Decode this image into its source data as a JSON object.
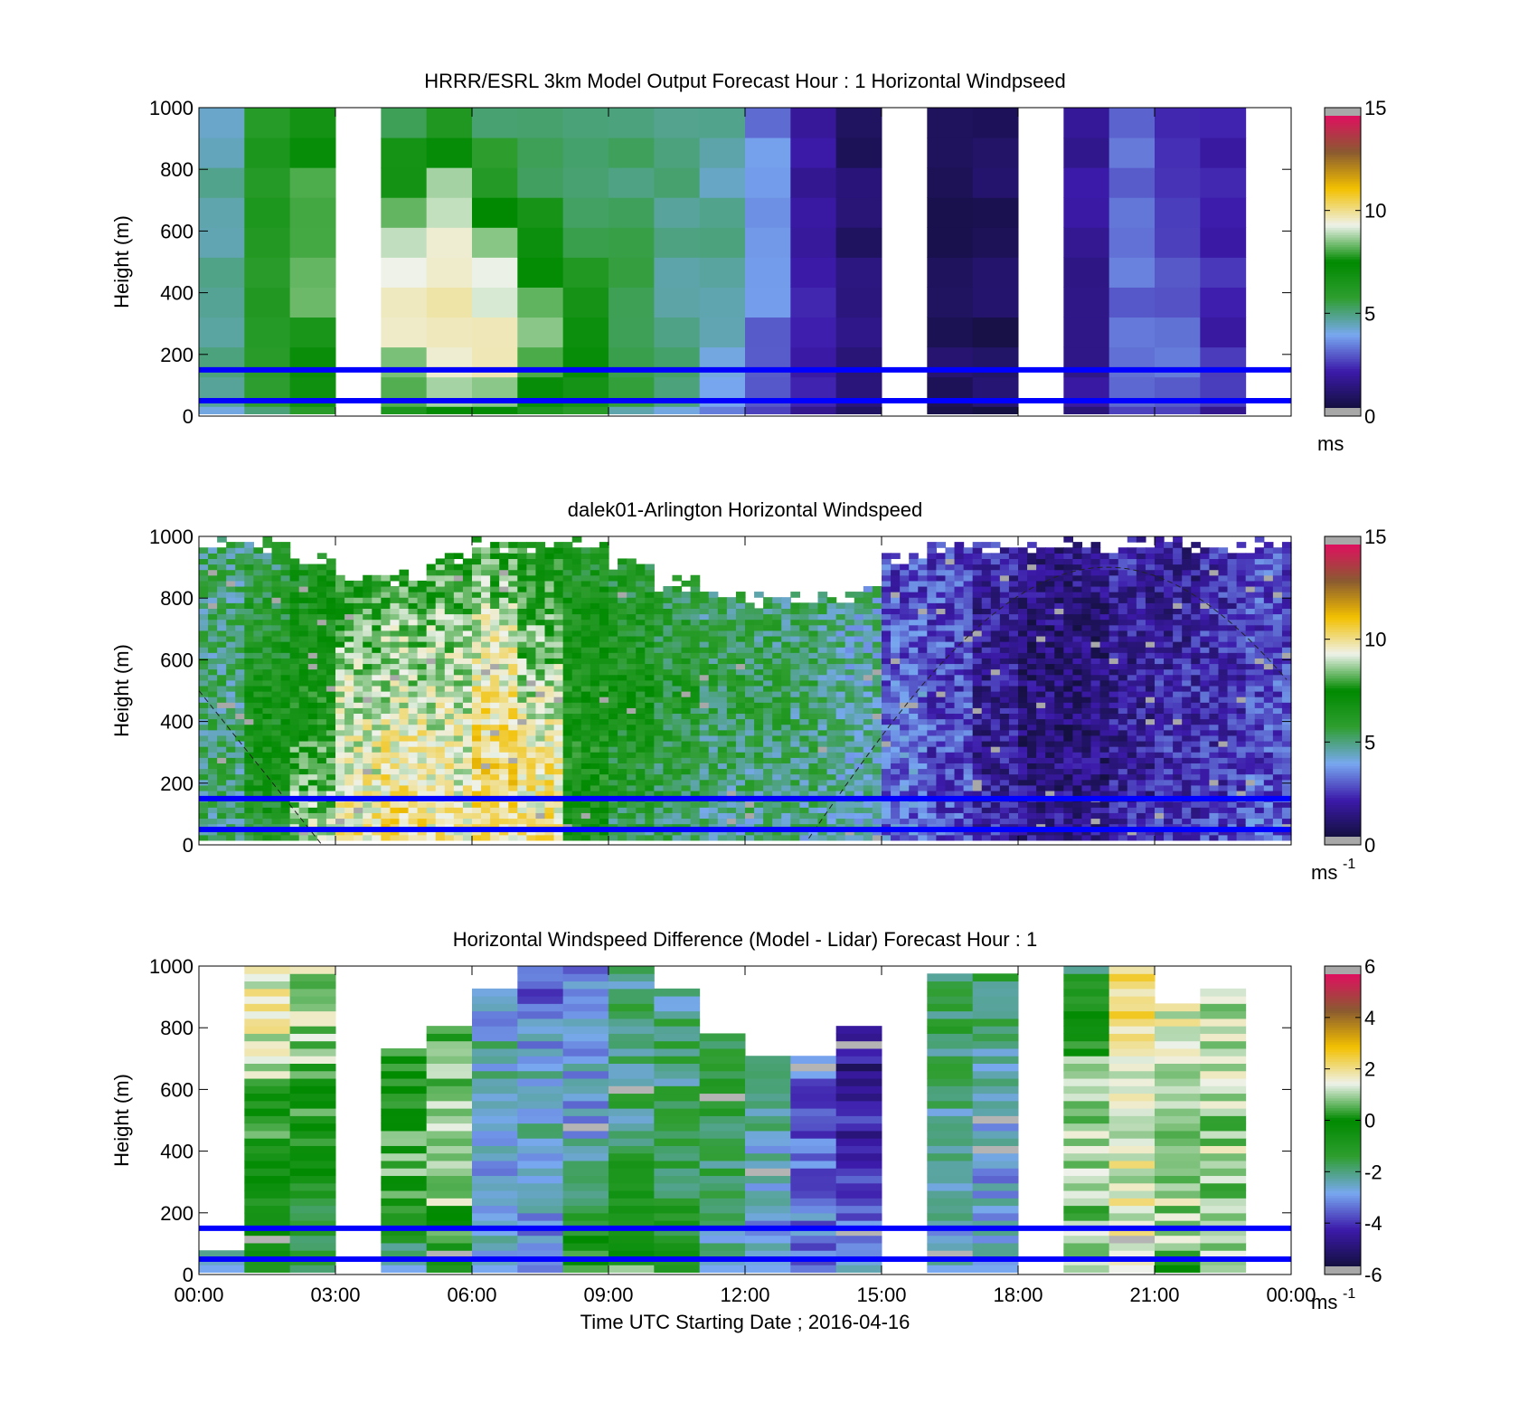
{
  "figure": {
    "xlabel": "Time UTC  Starting Date ; 2016-04-16",
    "x_ticks": [
      "00:00",
      "03:00",
      "06:00",
      "09:00",
      "12:00",
      "15:00",
      "18:00",
      "21:00",
      "00:00"
    ],
    "y_ticks": [
      "0",
      "200",
      "400",
      "600",
      "800",
      "1000"
    ],
    "ylabel": "Height (m)",
    "reference_lines_color": "#0000ff"
  },
  "chart_data": [
    {
      "type": "heatmap",
      "title": "HRRR/ESRL 3km Model Output   Forecast Hour : 1 Horizontal Windpseed",
      "ylabel": "Height (m)",
      "xlabel": "",
      "xlim": [
        0,
        24
      ],
      "ylim": [
        0,
        1000
      ],
      "x_unit": "hours UTC",
      "reference_heights_m": [
        50,
        150
      ],
      "colorbar": {
        "min": 0,
        "max": 15,
        "ticks": [
          "0",
          "5",
          "10",
          "15"
        ],
        "unit": "ms"
      },
      "colormap": [
        "#141041",
        "#3c1aaa",
        "#78a8f0",
        "#2f9e30",
        "#008a00",
        "#eef2ea",
        "#f2c000",
        "#8a5a30",
        "#e01060"
      ],
      "hourly_columns": [
        {
          "hour": 0,
          "speed_profile": [
            4.5,
            4.5,
            4.5,
            4.5,
            4.5
          ]
        },
        {
          "hour": 1,
          "speed_profile": [
            5.5,
            6,
            6,
            6,
            6
          ]
        },
        {
          "hour": 2,
          "speed_profile": [
            6.5,
            7.5,
            8.5,
            8,
            6.5
          ]
        },
        {
          "hour": 3,
          "speed_profile": null
        },
        {
          "hour": 4,
          "speed_profile": [
            7,
            9.5,
            9.5,
            8,
            5
          ]
        },
        {
          "hour": 5,
          "speed_profile": [
            8,
            10,
            10,
            9,
            5.5
          ]
        },
        {
          "hour": 6,
          "speed_profile": [
            8,
            10,
            9,
            6.5,
            4.5
          ]
        },
        {
          "hour": 7,
          "speed_profile": [
            7,
            8.5,
            7.5,
            5.5,
            4.5
          ]
        },
        {
          "hour": 8,
          "speed_profile": [
            6.5,
            7,
            6,
            5,
            4.5
          ]
        },
        {
          "hour": 9,
          "speed_profile": [
            5,
            5.5,
            5.2,
            5,
            4.8
          ]
        },
        {
          "hour": 10,
          "speed_profile": [
            4.5,
            4.8,
            4.8,
            4.8,
            4.8
          ]
        },
        {
          "hour": 11,
          "speed_profile": [
            3.8,
            4.5,
            4.5,
            4.5,
            4.5
          ]
        },
        {
          "hour": 12,
          "speed_profile": [
            3,
            3,
            4,
            3.5,
            3.2
          ]
        },
        {
          "hour": 13,
          "speed_profile": [
            2,
            2.2,
            1.8,
            1.6,
            1.6
          ]
        },
        {
          "hour": 14,
          "speed_profile": [
            1.2,
            1.2,
            0.9,
            0.7,
            0.7
          ]
        },
        {
          "hour": 15,
          "speed_profile": null
        },
        {
          "hour": 16,
          "speed_profile": [
            0.8,
            0.6,
            0.5,
            0.6,
            0.8
          ]
        },
        {
          "hour": 17,
          "speed_profile": [
            0.6,
            0.4,
            0.4,
            0.6,
            0.7
          ]
        },
        {
          "hour": 18,
          "speed_profile": null
        },
        {
          "hour": 19,
          "speed_profile": [
            1.6,
            1.6,
            1.6,
            1.6,
            1.6
          ]
        },
        {
          "hour": 20,
          "speed_profile": [
            3,
            3,
            3,
            3,
            3
          ]
        },
        {
          "hour": 21,
          "speed_profile": [
            3,
            2.8,
            2.4,
            2,
            1.6
          ]
        },
        {
          "hour": 22,
          "speed_profile": [
            2,
            2,
            2,
            1.8,
            1.6
          ]
        },
        {
          "hour": 23,
          "speed_profile": null
        }
      ]
    },
    {
      "type": "heatmap",
      "title": "dalek01-Arlington  Horizontal Windspeed",
      "ylabel": "Height (m)",
      "xlabel": "",
      "xlim": [
        0,
        24
      ],
      "ylim": [
        0,
        1000
      ],
      "x_unit": "hours UTC",
      "reference_heights_m": [
        50,
        150
      ],
      "colorbar": {
        "min": 0,
        "max": 15,
        "ticks": [
          "0",
          "5",
          "10",
          "15"
        ],
        "unit": "ms",
        "unit_exponent": "-1"
      },
      "colormap": [
        "#141041",
        "#3c1aaa",
        "#78a8f0",
        "#2f9e30",
        "#008a00",
        "#eef2ea",
        "#f2c000",
        "#8a5a30",
        "#e01060"
      ],
      "top_of_valid_data_m_by_hour": [
        1000,
        1000,
        950,
        900,
        900,
        950,
        1000,
        1000,
        1000,
        950,
        880,
        850,
        830,
        820,
        850,
        950,
        1000,
        1000,
        1000,
        1000,
        1000,
        1000,
        1000,
        1000
      ],
      "hourly_mean_speed_profile": [
        [
          5,
          5,
          5,
          5,
          5
        ],
        [
          6,
          6.5,
          6.5,
          6,
          5
        ],
        [
          9,
          8,
          7,
          6.5,
          6
        ],
        [
          10,
          9.5,
          9,
          8,
          6.5
        ],
        [
          10.5,
          10,
          9,
          8.5,
          7
        ],
        [
          10,
          9.5,
          9,
          8.5,
          7.5
        ],
        [
          10,
          10.5,
          10,
          9,
          7.5
        ],
        [
          10,
          10,
          9,
          8,
          7
        ],
        [
          6.5,
          7,
          7,
          6.5,
          6
        ],
        [
          5,
          6,
          6.5,
          6,
          5.5
        ],
        [
          5,
          5.5,
          6,
          5.5,
          5
        ],
        [
          4.5,
          5,
          5.5,
          5,
          4.5
        ],
        [
          4.5,
          5,
          5.5,
          5,
          5
        ],
        [
          4.5,
          5,
          5,
          5,
          5
        ],
        [
          4,
          4.5,
          4.5,
          4.5,
          4.5
        ],
        [
          3,
          3,
          3,
          2.5,
          2.5
        ],
        [
          2.5,
          2.5,
          2.5,
          2.5,
          2.5
        ],
        [
          2,
          1.5,
          1.5,
          1.5,
          2
        ],
        [
          1.5,
          1,
          1,
          1,
          1.5
        ],
        [
          1.5,
          1,
          1,
          1,
          1.5
        ],
        [
          2,
          1.5,
          1.5,
          1.5,
          2
        ],
        [
          2,
          2,
          2,
          1.5,
          1.5
        ],
        [
          2.5,
          2,
          2,
          2,
          2
        ],
        [
          3,
          2.5,
          2.5,
          2.5,
          2.5
        ]
      ]
    },
    {
      "type": "heatmap",
      "title": "Horizontal Windspeed Difference (Model - Lidar) Forecast Hour : 1",
      "ylabel": "Height (m)",
      "xlabel": "Time UTC  Starting Date ; 2016-04-16",
      "xlim": [
        0,
        24
      ],
      "ylim": [
        0,
        1000
      ],
      "x_unit": "hours UTC",
      "reference_heights_m": [
        50,
        150
      ],
      "colorbar": {
        "min": -6,
        "max": 6,
        "ticks": [
          "-6",
          "-4",
          "-2",
          "0",
          "2",
          "4",
          "6"
        ],
        "unit": "ms",
        "unit_exponent": "-1"
      },
      "colormap": [
        "#141041",
        "#3c1aaa",
        "#78a8f0",
        "#2f9e30",
        "#008a00",
        "#eef2ea",
        "#f2c000",
        "#8a5a30",
        "#e01060"
      ],
      "hourly_columns": [
        {
          "hour": 0,
          "top_m": 80,
          "diff_profile": [
            -3,
            -3,
            -3,
            -3,
            -3
          ]
        },
        {
          "hour": 1,
          "top_m": 1000,
          "diff_profile": [
            -1,
            -0.5,
            0.5,
            1.5,
            1.8
          ]
        },
        {
          "hour": 2,
          "top_m": 1000,
          "diff_profile": [
            -2,
            -1,
            0.5,
            1,
            1
          ]
        },
        {
          "hour": 3,
          "top_m": 0,
          "diff_profile": null
        },
        {
          "hour": 4,
          "top_m": 730,
          "diff_profile": [
            -3,
            0.5,
            0.5,
            0.5,
            0.5
          ]
        },
        {
          "hour": 5,
          "top_m": 810,
          "diff_profile": [
            -1,
            1,
            1,
            0.8,
            0.5
          ]
        },
        {
          "hour": 6,
          "top_m": 930,
          "diff_profile": [
            -3,
            -3,
            -2.5,
            -2.5,
            -4
          ]
        },
        {
          "hour": 7,
          "top_m": 1000,
          "diff_profile": [
            -3.5,
            -3,
            -2.5,
            -3,
            -4
          ]
        },
        {
          "hour": 8,
          "top_m": 1000,
          "diff_profile": [
            0.5,
            -2,
            -3,
            -3,
            -3.5
          ]
        },
        {
          "hour": 9,
          "top_m": 1000,
          "diff_profile": [
            1,
            -1,
            -2,
            -2,
            -2.5
          ]
        },
        {
          "hour": 10,
          "top_m": 930,
          "diff_profile": [
            -1,
            -1.5,
            -2,
            -2,
            -2.5
          ]
        },
        {
          "hour": 11,
          "top_m": 790,
          "diff_profile": [
            -3,
            -2,
            -1.5,
            -1.5,
            -1
          ]
        },
        {
          "hour": 12,
          "top_m": 720,
          "diff_profile": [
            -3,
            -3,
            -2.5,
            -2.5,
            -2.5
          ]
        },
        {
          "hour": 13,
          "top_m": 700,
          "diff_profile": [
            -3.5,
            -3.5,
            -4,
            -3.5,
            -3.5
          ]
        },
        {
          "hour": 14,
          "top_m": 810,
          "diff_profile": [
            -2.5,
            -4,
            -4.5,
            -5,
            -4.5
          ]
        },
        {
          "hour": 15,
          "top_m": 0,
          "diff_profile": null
        },
        {
          "hour": 16,
          "top_m": 975,
          "diff_profile": [
            -3,
            -2.5,
            -2.5,
            -2,
            -1.5
          ]
        },
        {
          "hour": 17,
          "top_m": 975,
          "diff_profile": [
            -3,
            -3,
            -3,
            -2.5,
            -1.5
          ]
        },
        {
          "hour": 18,
          "top_m": 0,
          "diff_profile": null
        },
        {
          "hour": 19,
          "top_m": 1000,
          "diff_profile": [
            1,
            1,
            1,
            0.5,
            -2
          ]
        },
        {
          "hour": 20,
          "top_m": 1000,
          "diff_profile": [
            1.5,
            1.5,
            1.5,
            2,
            2
          ]
        },
        {
          "hour": 21,
          "top_m": 870,
          "diff_profile": [
            null,
            1,
            1,
            1.5,
            1.5
          ]
        },
        {
          "hour": 22,
          "top_m": 920,
          "diff_profile": [
            1,
            1,
            1,
            1,
            1
          ]
        },
        {
          "hour": 23,
          "top_m": 0,
          "diff_profile": null
        }
      ]
    }
  ]
}
